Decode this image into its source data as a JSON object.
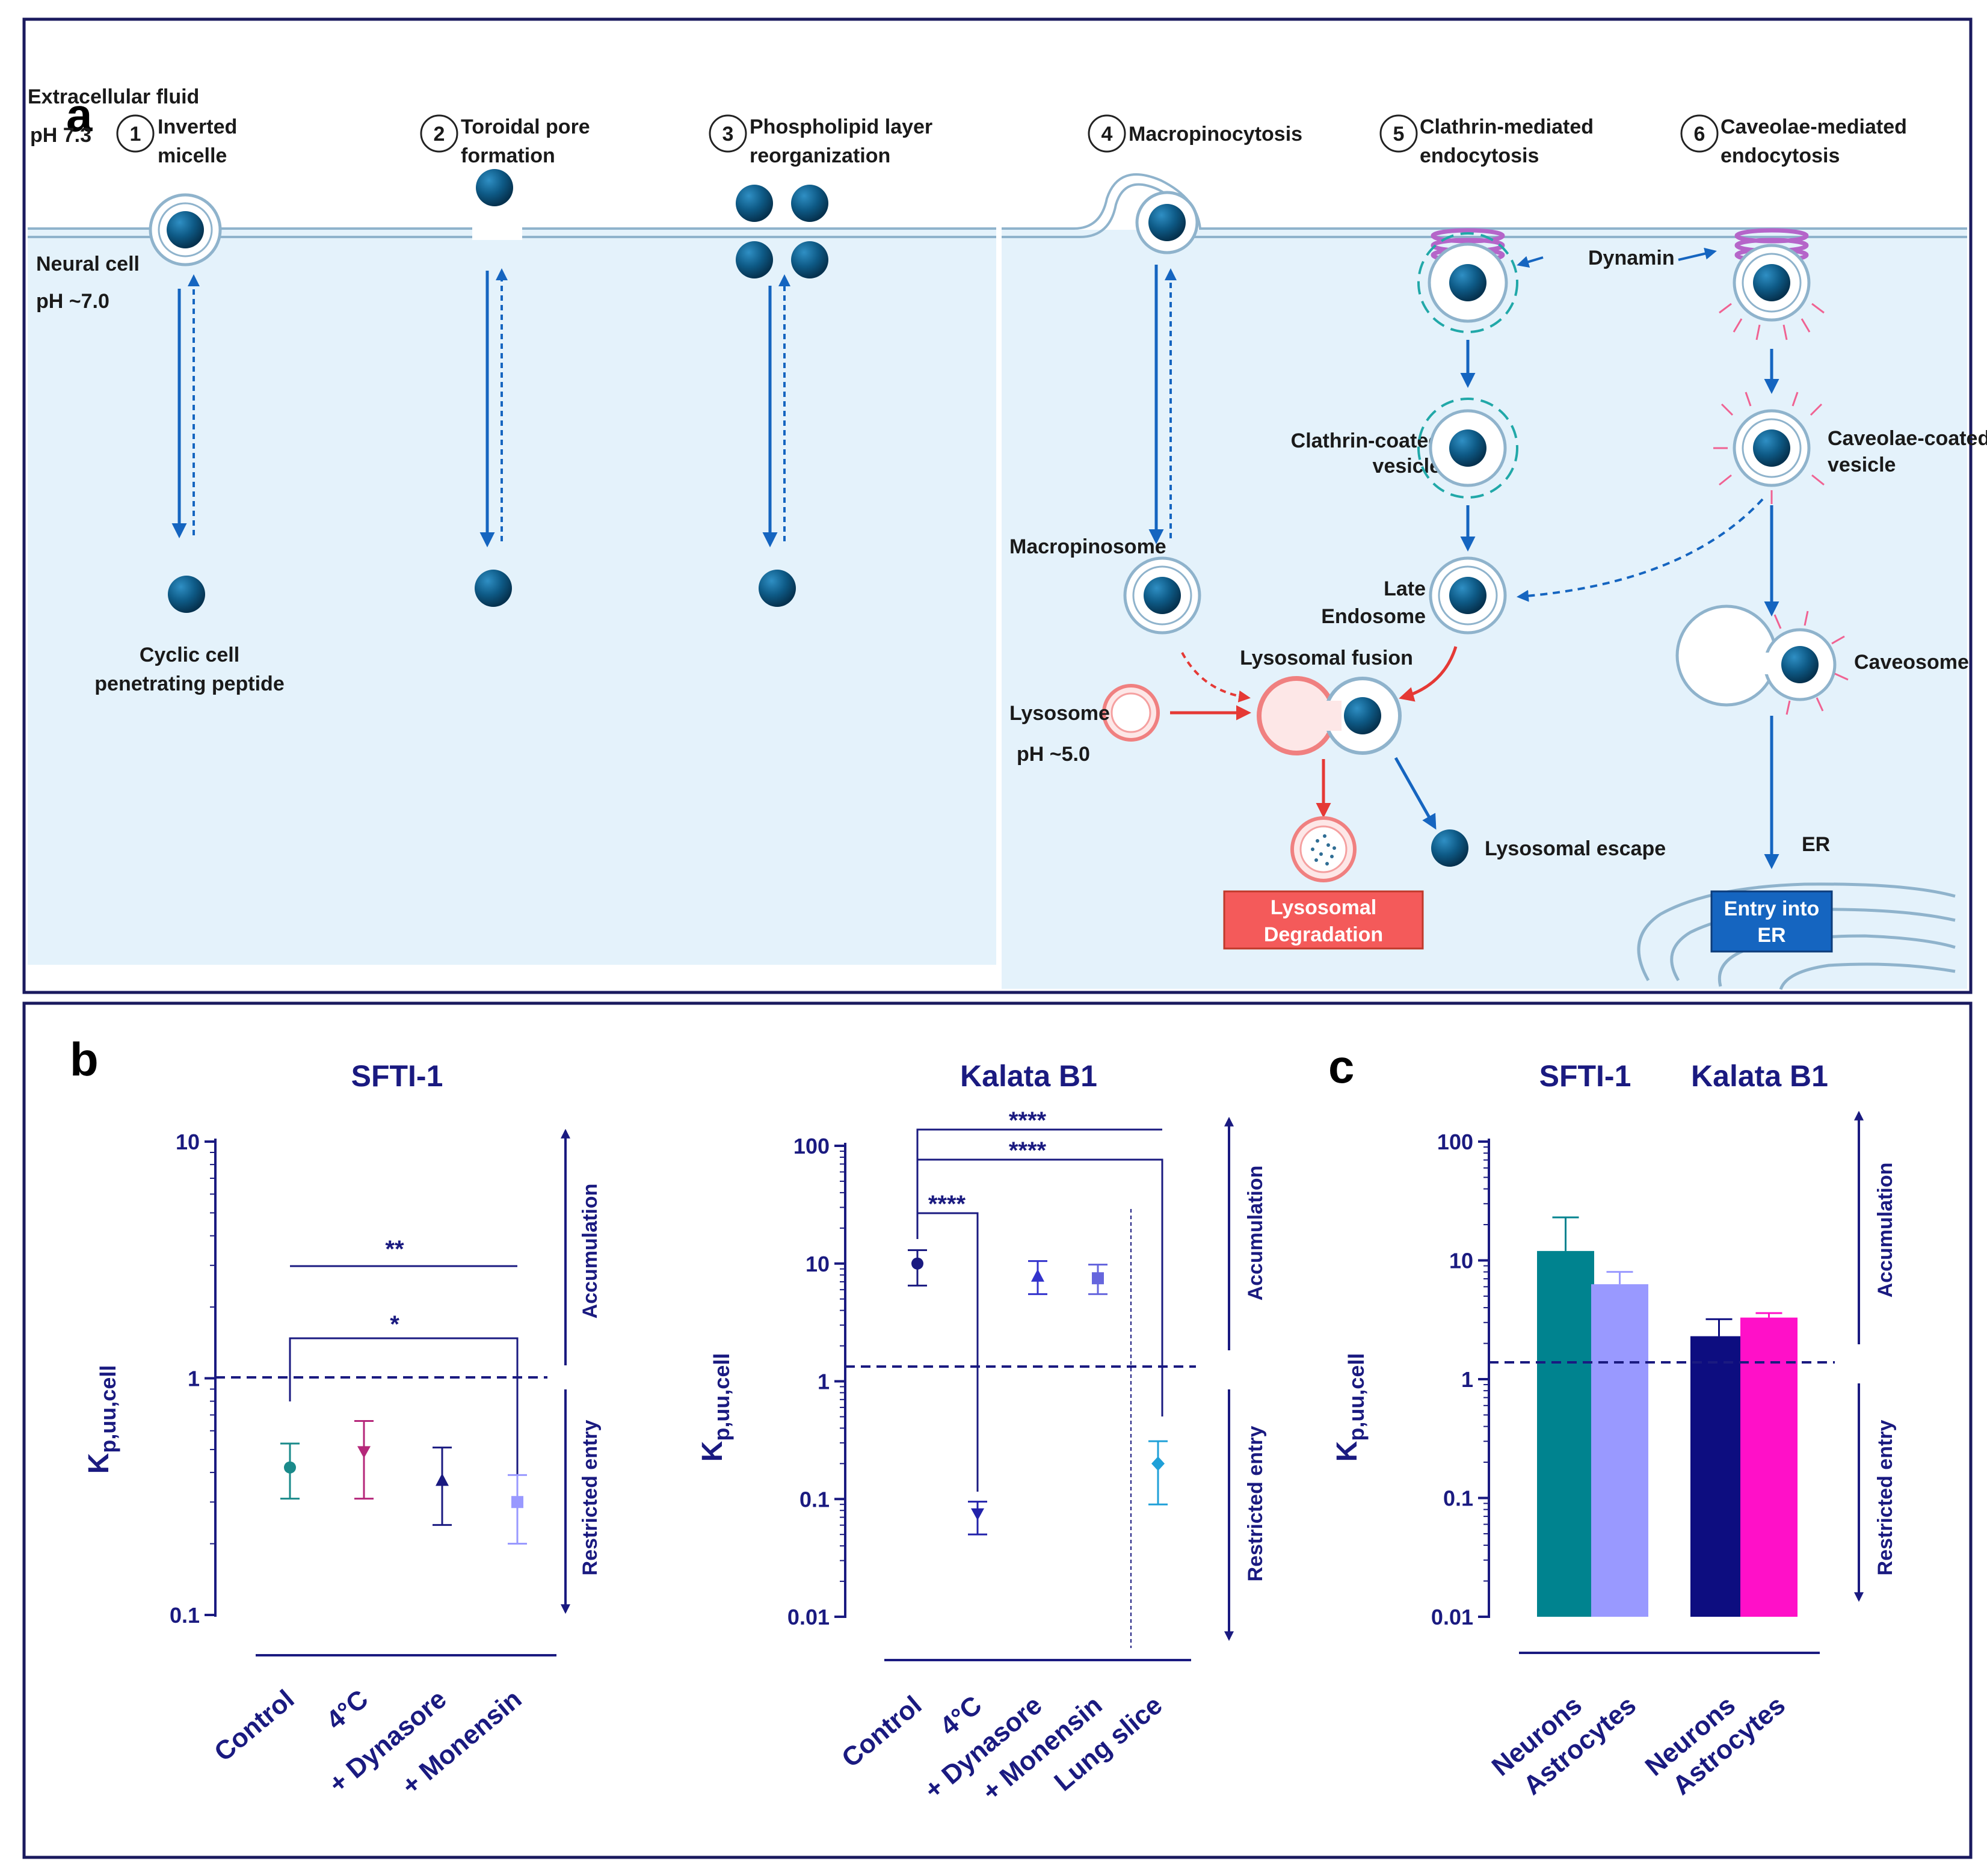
{
  "panel_a": {
    "label": "a",
    "extracellular": {
      "line1": "Extracellular fluid",
      "line2": "pH 7.3"
    },
    "neural": {
      "line1": "Neural cell",
      "line2": "pH ~7.0"
    },
    "mechanisms": [
      {
        "num": "1",
        "line1": "Inverted",
        "line2": "micelle"
      },
      {
        "num": "2",
        "line1": "Toroidal pore",
        "line2": "formation"
      },
      {
        "num": "3",
        "line1": "Phospholipid layer",
        "line2": "reorganization"
      },
      {
        "num": "4",
        "line1": "Macropinocytosis",
        "line2": ""
      },
      {
        "num": "5",
        "line1": "Clathrin-mediated",
        "line2": "endocytosis"
      },
      {
        "num": "6",
        "line1": "Caveolae-mediated",
        "line2": "endocytosis"
      }
    ],
    "cyclic_peptide": {
      "line1": "Cyclic cell",
      "line2": "penetrating peptide"
    },
    "dynamin": "Dynamin",
    "clathrin_vesicle": {
      "line1": "Clathrin-coated",
      "line2": "vesicle"
    },
    "caveolae_vesicle": {
      "line1": "Caveolae-coated",
      "line2": "vesicle"
    },
    "macropinosome": "Macropinosome",
    "late_endosome": {
      "line1": "Late",
      "line2": "Endosome"
    },
    "lysosomal_fusion": "Lysosomal fusion",
    "lysosome": "Lysosome",
    "lysosome_ph": "pH ~5.0",
    "caveosome": "Caveosome",
    "lysosomal_escape": "Lysosomal escape",
    "er": "ER",
    "degradation": {
      "line1": "Lysosomal",
      "line2": "Degradation"
    },
    "entry_er": {
      "line1": "Entry into",
      "line2": "ER"
    }
  },
  "panel_b_label": "b",
  "panel_c_label": "c",
  "chart_data": [
    {
      "type": "scatter",
      "title": "SFTI-1",
      "ylabel": "Kp,uu,cell",
      "ylabel_main": "K",
      "ylabel_sub": "p,uu,cell",
      "yscale": "log",
      "ylim": [
        0.1,
        10
      ],
      "yticks": [
        "0.1",
        "1",
        "10"
      ],
      "categories": [
        "Control",
        "4°C",
        "+ Dynasore",
        "+ Monensin"
      ],
      "values": [
        0.42,
        0.49,
        0.37,
        0.3
      ],
      "err_low": [
        0.31,
        0.31,
        0.24,
        0.2
      ],
      "err_high": [
        0.53,
        0.66,
        0.51,
        0.39
      ],
      "colors": [
        "#1a8a8a",
        "#b5277a",
        "#1a1a80",
        "#9999ff"
      ],
      "reference_line": 1,
      "significance": [
        "**",
        "*"
      ],
      "arrow_labels": [
        "Accumulation",
        "Restricted entry"
      ]
    },
    {
      "type": "scatter",
      "title": "Kalata B1",
      "ylabel": "Kp,uu,cell",
      "ylabel_main": "K",
      "ylabel_sub": "p,uu,cell",
      "yscale": "log",
      "ylim": [
        0.01,
        100
      ],
      "yticks": [
        "0.01",
        "0.1",
        "1",
        "10",
        "100"
      ],
      "categories": [
        "Control",
        "4°C",
        "+ Dynasore",
        "+ Monensin",
        "Lung slice"
      ],
      "values": [
        10,
        0.075,
        7.8,
        7.5,
        0.2
      ],
      "err_low": [
        6.5,
        0.05,
        5.5,
        5.5,
        0.09
      ],
      "err_high": [
        13,
        0.095,
        10.5,
        9.8,
        0.31
      ],
      "colors": [
        "#1a1a80",
        "#2222aa",
        "#3333cc",
        "#6666dd",
        "#1fa0d8"
      ],
      "reference_line": 1.3,
      "significance": [
        "****",
        "****",
        "****"
      ],
      "arrow_labels": [
        "Accumulation",
        "Restricted entry"
      ]
    },
    {
      "type": "bar",
      "series_titles": [
        "SFTI-1",
        "Kalata B1"
      ],
      "ylabel": "Kp,uu,cell",
      "ylabel_main": "K",
      "ylabel_sub": "p,uu,cell",
      "yscale": "log",
      "ylim": [
        0.01,
        100
      ],
      "yticks": [
        "0.01",
        "0.1",
        "1",
        "10",
        "100"
      ],
      "categories": [
        "Neurons",
        "Astrocytes",
        "Neurons",
        "Astrocytes"
      ],
      "values": [
        12,
        6.3,
        2.3,
        3.3
      ],
      "err_high": [
        23,
        8,
        3.2,
        3.6
      ],
      "colors": [
        "#00838f",
        "#9999ff",
        "#0d0d80",
        "#ff10c8"
      ],
      "reference_line": 1.3,
      "arrow_labels": [
        "Accumulation",
        "Restricted entry"
      ]
    }
  ]
}
